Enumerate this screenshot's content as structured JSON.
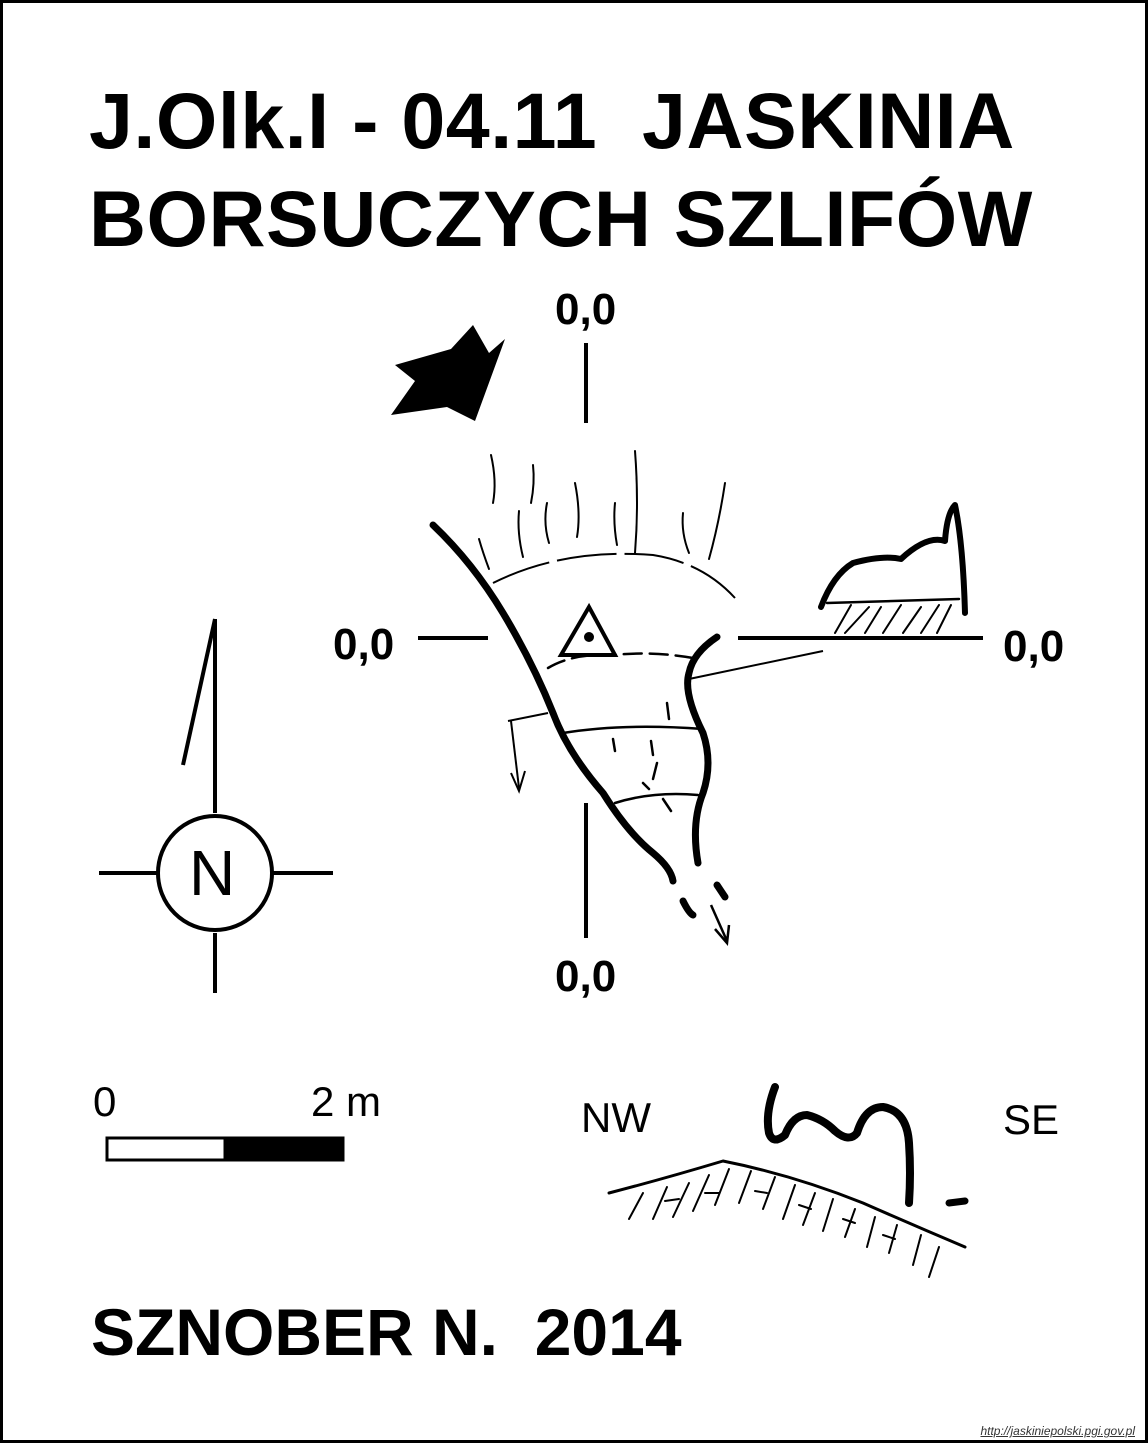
{
  "title": {
    "line1": "J.Olk.I - 04.11  JASKINIA",
    "line2": "BORSUCZYCH SZLIFÓW"
  },
  "coordinates": {
    "top": "0,0",
    "left": "0,0",
    "right": "0,0",
    "bottom": "0,0"
  },
  "north_arrow": {
    "letter": "N",
    "icon": "north-arrow-icon"
  },
  "scale_bar": {
    "start_label": "0",
    "end_label": "2 m"
  },
  "cross_section": {
    "left_label": "NW",
    "right_label": "SE"
  },
  "author": "SZNOBER N.  2014",
  "source_url": "http://jaskiniepolski.pgi.gov.pl"
}
